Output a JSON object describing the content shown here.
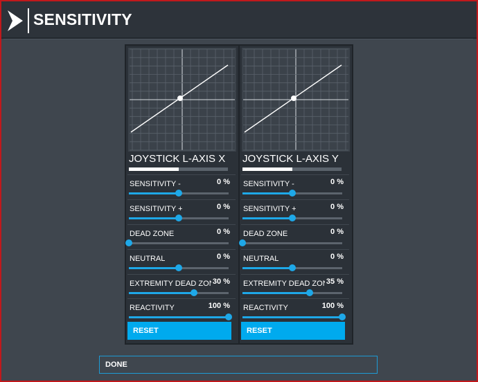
{
  "header": {
    "title": "SENSITIVITY",
    "logo_icon": "chevron-right-logo-icon"
  },
  "panels": [
    {
      "axis_name": "JOYSTICK L-AXIS X",
      "axis_position": 0.5,
      "rows": [
        {
          "label": "SENSITIVITY -",
          "value": "0 %",
          "level": 0.5
        },
        {
          "label": "SENSITIVITY +",
          "value": "0 %",
          "level": 0.5
        },
        {
          "label": "DEAD ZONE",
          "value": "0 %",
          "level": 0.0
        },
        {
          "label": "NEUTRAL",
          "value": "0 %",
          "level": 0.5
        },
        {
          "label": "EXTREMITY DEAD ZONE",
          "value": "30 %",
          "level": 0.65
        },
        {
          "label": "REACTIVITY",
          "value": "100 %",
          "level": 1.0
        }
      ],
      "reset_label": "RESET"
    },
    {
      "axis_name": "JOYSTICK L-AXIS Y",
      "axis_position": 0.5,
      "rows": [
        {
          "label": "SENSITIVITY -",
          "value": "0 %",
          "level": 0.5
        },
        {
          "label": "SENSITIVITY +",
          "value": "0 %",
          "level": 0.5
        },
        {
          "label": "DEAD ZONE",
          "value": "0 %",
          "level": 0.0
        },
        {
          "label": "NEUTRAL",
          "value": "0 %",
          "level": 0.5
        },
        {
          "label": "EXTREMITY DEAD ZONE",
          "value": "35 %",
          "level": 0.675
        },
        {
          "label": "REACTIVITY",
          "value": "100 %",
          "level": 1.0
        }
      ],
      "reset_label": "RESET"
    }
  ],
  "footer": {
    "done_label": "DONE"
  },
  "colors": {
    "accent": "#00aaee",
    "slider": "#1ea8e8",
    "frame_border": "#c0181c"
  }
}
